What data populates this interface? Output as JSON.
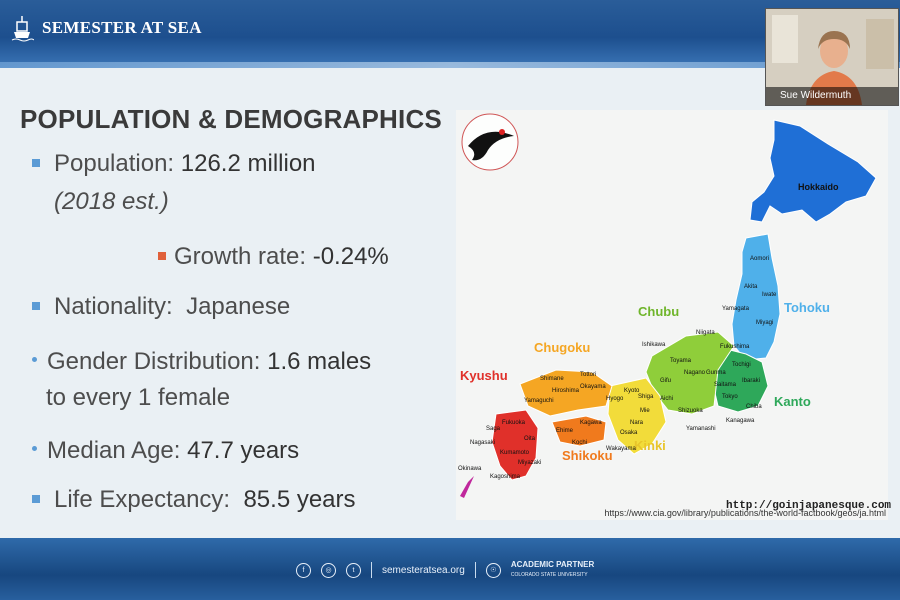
{
  "header": {
    "brand": "SEMESTER AT SEA"
  },
  "slide": {
    "title": "POPULATION & DEMOGRAPHICS",
    "bullets": {
      "population_label": "Population:",
      "population_value": "126.2 million",
      "population_note": "(2018 est.)",
      "growth_label": "Growth rate:",
      "growth_value": "-0.24%",
      "nationality_label": "Nationality:",
      "nationality_value": "Japanese",
      "gender_label": "Gender Distribution:",
      "gender_value_1": "1.6 males",
      "gender_value_2": "to every 1 female",
      "median_label": "Median Age:",
      "median_value": "47.7 years",
      "life_label": "Life Expectancy:",
      "life_value": "85.5 years"
    },
    "map": {
      "url": "http://goinjapanesque.com",
      "regions": [
        "Hokkaido",
        "Tohoku",
        "Kanto",
        "Chubu",
        "Kinki",
        "Chugoku",
        "Shikoku",
        "Kyushu"
      ],
      "prefectures": [
        "Aomori",
        "Akita",
        "Iwate",
        "Yamagata",
        "Miyagi",
        "Niigata",
        "Fukushima",
        "Ishikawa",
        "Toyama",
        "Nagano",
        "Tochigi",
        "Gunma",
        "Saitama",
        "Ibaraki",
        "Tokyo",
        "Chiba",
        "Kanagawa",
        "Yamanashi",
        "Shizuoka",
        "Gifu",
        "Aichi",
        "Mie",
        "Nara",
        "Osaka",
        "Kyoto",
        "Hyogo",
        "Shiga",
        "Wakayama",
        "Tottori",
        "Shimane",
        "Okayama",
        "Hiroshima",
        "Yamaguchi",
        "Ehime",
        "Kochi",
        "Kagawa",
        "Fukuoka",
        "Saga",
        "Oita",
        "Nagasaki",
        "Kumamoto",
        "Miyazaki",
        "Kagoshima",
        "Okinawa"
      ],
      "region_colors": {
        "Hokkaido": "#1f6fd6",
        "Tohoku": "#4fb0ea",
        "Kanto": "#2ea85a",
        "Chubu": "#8fce3a",
        "Kinki": "#f2dc3a",
        "Chugoku": "#f5a623",
        "Shikoku": "#f07a1d",
        "Kyushu": "#e0302a",
        "Okinawa": "#c0279c"
      }
    },
    "citation": "https://www.cia.gov/library/publications/the-world-factbook/geos/ja.html"
  },
  "footer": {
    "website": "semesteratsea.org",
    "partner_line1": "ACADEMIC PARTNER",
    "partner_line2": "COLORADO STATE UNIVERSITY",
    "social_icons": [
      "facebook-icon",
      "instagram-icon",
      "twitter-icon"
    ]
  },
  "webcam": {
    "name": "Sue Wildermuth"
  }
}
